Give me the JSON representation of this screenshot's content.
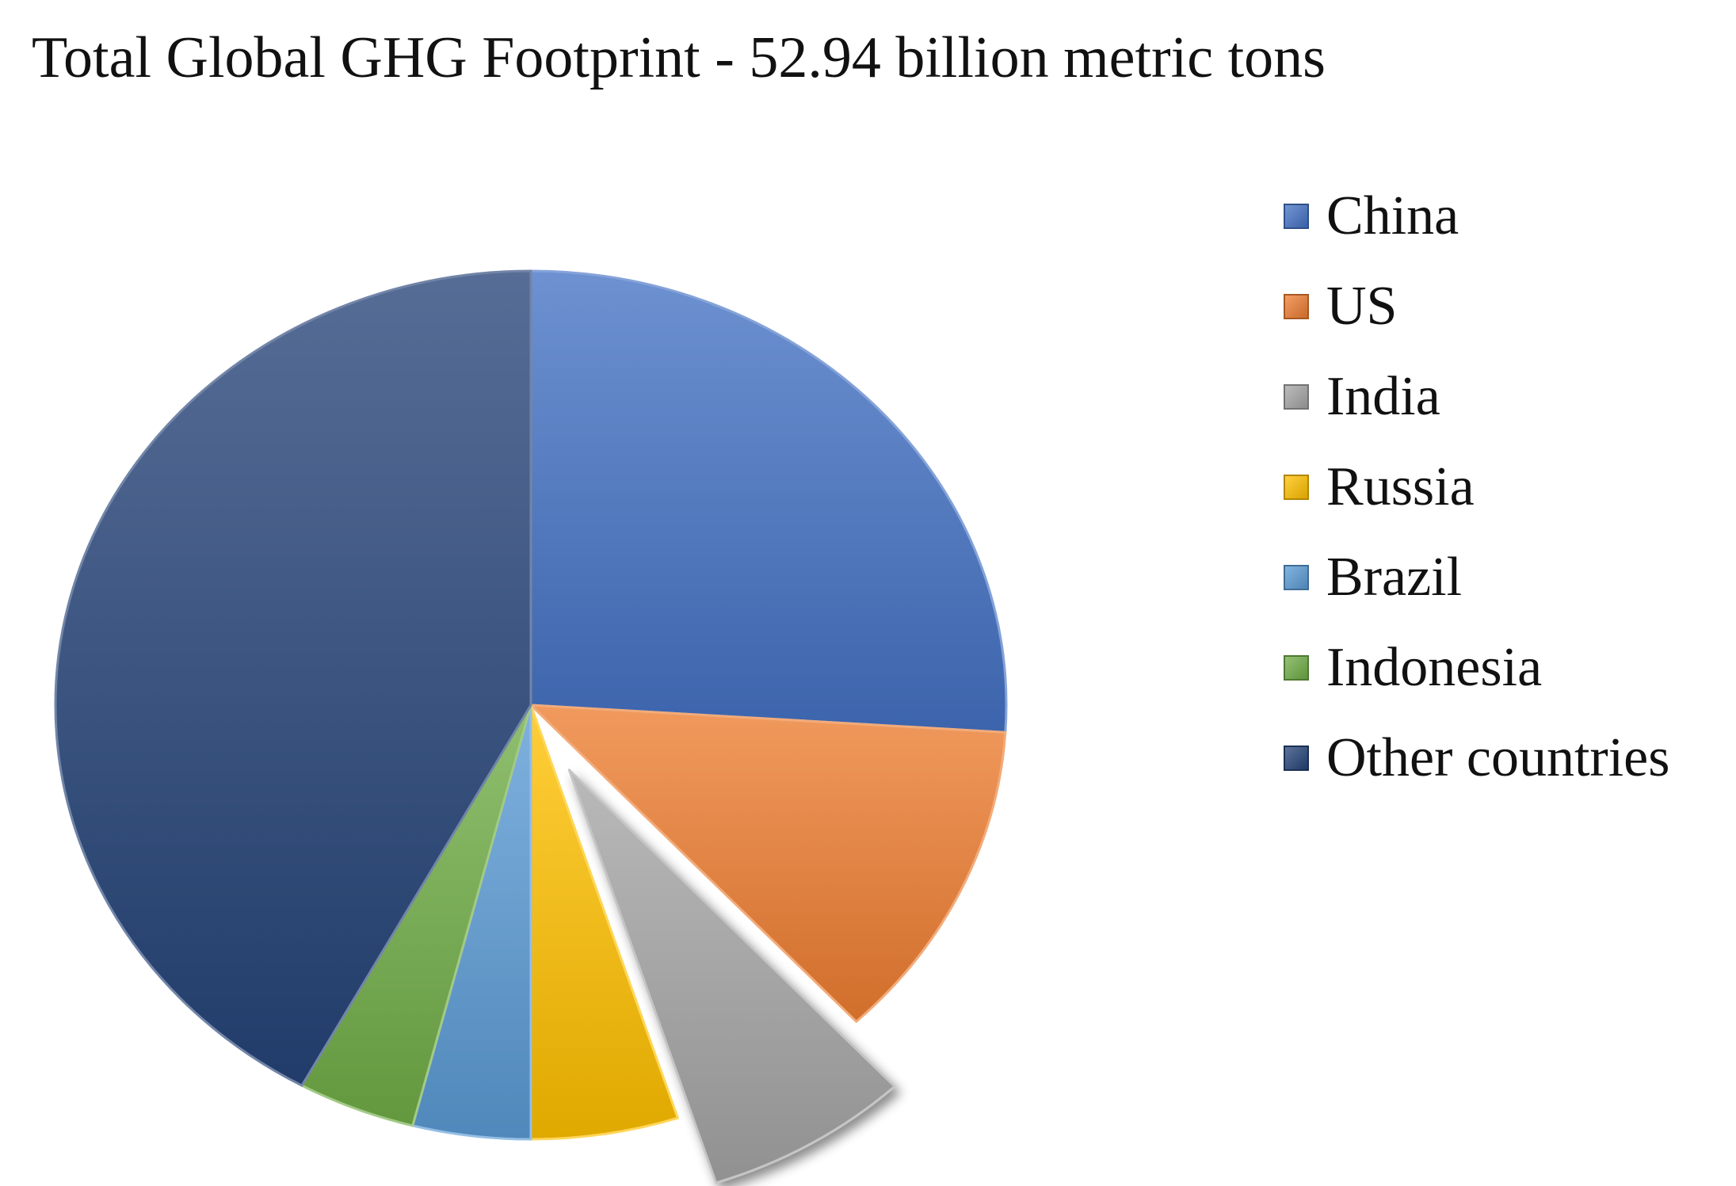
{
  "chart_data": {
    "type": "pie",
    "title": "Total Global GHG Footprint - 52.94 billion metric tons",
    "legend_position": "right",
    "exploded_slice": "India",
    "start_angle": "top (12 o'clock), clockwise",
    "slices": [
      {
        "label": "China",
        "value": 26.0,
        "color": "#4472C4"
      },
      {
        "label": "US",
        "value": 12.0,
        "color": "#ED7D31"
      },
      {
        "label": "India",
        "value": 7.0,
        "color": "#A5A5A5"
      },
      {
        "label": "Russia",
        "value": 5.0,
        "color": "#FFC000"
      },
      {
        "label": "Brazil",
        "value": 4.0,
        "color": "#5B9BD5"
      },
      {
        "label": "Indonesia",
        "value": 4.0,
        "color": "#70AD47"
      },
      {
        "label": "Other countries",
        "value": 42.0,
        "color": "#264478"
      }
    ]
  }
}
